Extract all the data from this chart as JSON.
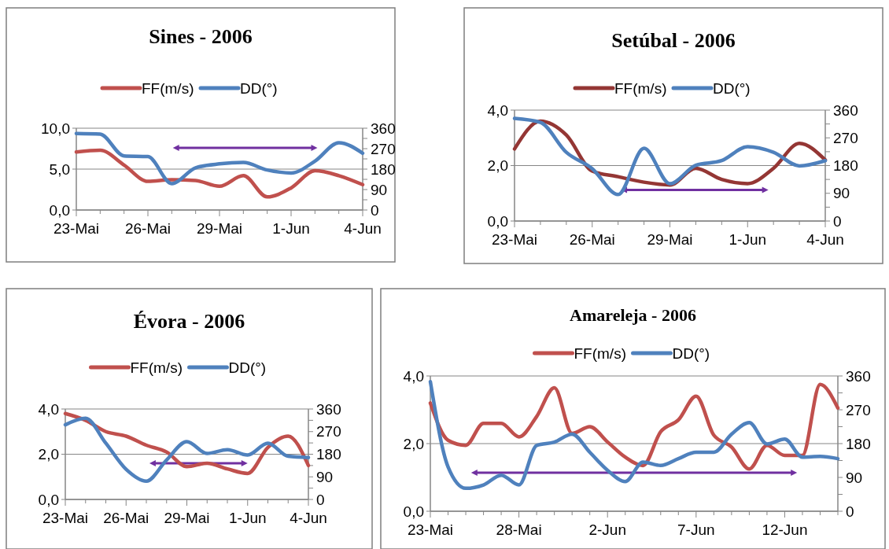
{
  "chart_data": [
    {
      "type": "line",
      "title": "Sines - 2006",
      "legend": "top",
      "grid": "y",
      "x": [
        "2006-05-23",
        "2006-05-24",
        "2006-05-25",
        "2006-05-26",
        "2006-05-27",
        "2006-05-28",
        "2006-05-29",
        "2006-05-30",
        "2006-05-31",
        "2006-06-01",
        "2006-06-02",
        "2006-06-03",
        "2006-06-04"
      ],
      "series": [
        {
          "name": "FF(m/s)",
          "color": "#c0504d",
          "values": [
            7.1,
            7.3,
            5.5,
            3.5,
            3.7,
            3.6,
            2.9,
            4.2,
            1.6,
            2.7,
            4.8,
            4.2,
            3.1
          ]
        },
        {
          "name": "DD(°)",
          "color": "#4f81bd",
          "axis": "y2",
          "values": [
            337,
            334,
            238,
            235,
            116,
            186,
            203,
            209,
            176,
            163,
            215,
            296,
            250
          ]
        }
      ],
      "xlim": [
        "2006-05-23",
        "2006-06-04"
      ],
      "xticks": [
        {
          "value": "2006-05-23",
          "label": "23-Mai"
        },
        {
          "value": "2006-05-24",
          "label": null
        },
        {
          "value": "2006-05-25",
          "label": null
        },
        {
          "value": "2006-05-26",
          "label": "26-Mai"
        },
        {
          "value": "2006-05-27",
          "label": null
        },
        {
          "value": "2006-05-28",
          "label": null
        },
        {
          "value": "2006-05-29",
          "label": "29-Mai"
        },
        {
          "value": "2006-05-30",
          "label": null
        },
        {
          "value": "2006-05-31",
          "label": null
        },
        {
          "value": "2006-06-01",
          "label": "1-Jun"
        },
        {
          "value": "2006-06-02",
          "label": null
        },
        {
          "value": "2006-06-03",
          "label": null
        },
        {
          "value": "2006-06-04",
          "label": "4-Jun"
        }
      ],
      "ylim": [
        0,
        10
      ],
      "yticks": [
        {
          "value": 0,
          "label": "0,0"
        },
        {
          "value": 5,
          "label": "5,0"
        },
        {
          "value": 10,
          "label": "10,0"
        }
      ],
      "y2lim": [
        0,
        360
      ],
      "y2ticks": [
        0,
        {
          "value": 45,
          "label": null
        },
        90,
        {
          "value": 135,
          "label": null
        },
        180,
        {
          "value": 225,
          "label": null
        },
        270,
        {
          "value": 315,
          "label": null
        },
        360
      ]
    },
    {
      "type": "line",
      "title": "Setúbal - 2006",
      "legend": "top",
      "grid": "y",
      "x": [
        "2006-05-23",
        "2006-05-24",
        "2006-05-25",
        "2006-05-26",
        "2006-05-27",
        "2006-05-28",
        "2006-05-29",
        "2006-05-30",
        "2006-05-31",
        "2006-06-01",
        "2006-06-02",
        "2006-06-03",
        "2006-06-04"
      ],
      "series": [
        {
          "name": "FF(m/s)",
          "color": "#943634",
          "values": [
            2.6,
            3.6,
            3.1,
            1.8,
            1.6,
            1.4,
            1.3,
            1.9,
            1.5,
            1.35,
            1.9,
            2.8,
            2.2
          ]
        },
        {
          "name": "DD(°)",
          "color": "#4f81bd",
          "axis": "y2",
          "values": [
            333,
            320,
            223,
            170,
            86,
            236,
            121,
            181,
            196,
            241,
            223,
            179,
            196
          ]
        }
      ],
      "xlim": [
        "2006-05-23",
        "2006-06-04"
      ],
      "xticks": [
        {
          "value": "2006-05-23",
          "label": "23-Mai"
        },
        {
          "value": "2006-05-24",
          "label": null
        },
        {
          "value": "2006-05-25",
          "label": null
        },
        {
          "value": "2006-05-26",
          "label": "26-Mai"
        },
        {
          "value": "2006-05-27",
          "label": null
        },
        {
          "value": "2006-05-28",
          "label": null
        },
        {
          "value": "2006-05-29",
          "label": "29-Mai"
        },
        {
          "value": "2006-05-30",
          "label": null
        },
        {
          "value": "2006-05-31",
          "label": null
        },
        {
          "value": "2006-06-01",
          "label": "1-Jun"
        },
        {
          "value": "2006-06-02",
          "label": null
        },
        {
          "value": "2006-06-03",
          "label": null
        },
        {
          "value": "2006-06-04",
          "label": "4-Jun"
        }
      ],
      "ylim": [
        0,
        4
      ],
      "yticks": [
        {
          "value": 0,
          "label": "0,0"
        },
        {
          "value": 2,
          "label": "2,0"
        },
        {
          "value": 4,
          "label": "4,0"
        }
      ],
      "y2lim": [
        0,
        360
      ],
      "y2ticks": [
        0,
        {
          "value": 45,
          "label": null
        },
        90,
        {
          "value": 135,
          "label": null
        },
        180,
        {
          "value": 225,
          "label": null
        },
        270,
        {
          "value": 315,
          "label": null
        },
        360
      ]
    },
    {
      "type": "line",
      "title": "Évora - 2006",
      "legend": "top",
      "grid": "y",
      "x": [
        "2006-05-23",
        "2006-05-24",
        "2006-05-25",
        "2006-05-26",
        "2006-05-27",
        "2006-05-28",
        "2006-05-29",
        "2006-05-30",
        "2006-05-31",
        "2006-06-01",
        "2006-06-02",
        "2006-06-03",
        "2006-06-04"
      ],
      "series": [
        {
          "name": "FF(m/s)",
          "color": "#c0504d",
          "values": [
            3.8,
            3.5,
            3.0,
            2.8,
            2.4,
            2.1,
            1.45,
            1.6,
            1.35,
            1.15,
            2.3,
            2.8,
            1.5
          ]
        },
        {
          "name": "DD(°)",
          "color": "#4f81bd",
          "axis": "y2",
          "values": [
            297,
            323,
            224,
            120,
            73,
            157,
            230,
            183,
            198,
            177,
            224,
            172,
            167
          ]
        }
      ],
      "xlim": [
        "2006-05-23",
        "2006-06-04"
      ],
      "xticks": [
        {
          "value": "2006-05-23",
          "label": "23-Mai"
        },
        {
          "value": "2006-05-24",
          "label": null
        },
        {
          "value": "2006-05-25",
          "label": null
        },
        {
          "value": "2006-05-26",
          "label": "26-Mai"
        },
        {
          "value": "2006-05-27",
          "label": null
        },
        {
          "value": "2006-05-28",
          "label": null
        },
        {
          "value": "2006-05-29",
          "label": "29-Mai"
        },
        {
          "value": "2006-05-30",
          "label": null
        },
        {
          "value": "2006-05-31",
          "label": null
        },
        {
          "value": "2006-06-01",
          "label": "1-Jun"
        },
        {
          "value": "2006-06-02",
          "label": null
        },
        {
          "value": "2006-06-03",
          "label": null
        },
        {
          "value": "2006-06-04",
          "label": "4-Jun"
        }
      ],
      "ylim": [
        0,
        4
      ],
      "yticks": [
        {
          "value": 0,
          "label": "0,0"
        },
        {
          "value": 2,
          "label": "2,0"
        },
        {
          "value": 4,
          "label": "4,0"
        }
      ],
      "y2lim": [
        0,
        360
      ],
      "y2ticks": [
        0,
        {
          "value": 45,
          "label": null
        },
        90,
        {
          "value": 135,
          "label": null
        },
        180,
        {
          "value": 225,
          "label": null
        },
        270,
        {
          "value": 315,
          "label": null
        },
        360
      ]
    },
    {
      "type": "line",
      "title": "Amareleja - 2006",
      "legend": "top",
      "grid": "y",
      "x": [
        "2006-05-23",
        "2006-05-24",
        "2006-05-25",
        "2006-05-26",
        "2006-05-27",
        "2006-05-28",
        "2006-05-29",
        "2006-05-30",
        "2006-05-31",
        "2006-06-01",
        "2006-06-02",
        "2006-06-03",
        "2006-06-04",
        "2006-06-05",
        "2006-06-06",
        "2006-06-07",
        "2006-06-08",
        "2006-06-09",
        "2006-06-10",
        "2006-06-11",
        "2006-06-12",
        "2006-06-13",
        "2006-06-14",
        "2006-06-15"
      ],
      "series": [
        {
          "name": "FF(m/s)",
          "color": "#c0504d",
          "values": [
            3.2,
            2.1,
            1.95,
            2.6,
            2.6,
            2.2,
            2.8,
            3.65,
            2.3,
            2.5,
            2.05,
            1.6,
            1.35,
            2.35,
            2.7,
            3.4,
            2.25,
            1.9,
            1.25,
            1.95,
            1.65,
            1.65,
            3.75,
            3.05
          ]
        },
        {
          "name": "DD(°)",
          "color": "#4f81bd",
          "axis": "y2",
          "values": [
            345,
            118,
            61,
            70,
            96,
            70,
            175,
            184,
            205,
            157,
            109,
            79,
            131,
            122,
            140,
            157,
            157,
            205,
            236,
            179,
            192,
            144,
            146,
            140
          ]
        }
      ],
      "xlim": [
        "2006-05-23",
        "2006-06-15"
      ],
      "xticks": [
        {
          "value": "2006-05-23",
          "label": "23-Mai"
        },
        {
          "value": "2006-05-24",
          "label": null
        },
        {
          "value": "2006-05-25",
          "label": null
        },
        {
          "value": "2006-05-26",
          "label": null
        },
        {
          "value": "2006-05-27",
          "label": null
        },
        {
          "value": "2006-05-28",
          "label": "28-Mai"
        },
        {
          "value": "2006-05-29",
          "label": null
        },
        {
          "value": "2006-05-30",
          "label": null
        },
        {
          "value": "2006-05-31",
          "label": null
        },
        {
          "value": "2006-06-01",
          "label": null
        },
        {
          "value": "2006-06-02",
          "label": "2-Jun"
        },
        {
          "value": "2006-06-03",
          "label": null
        },
        {
          "value": "2006-06-04",
          "label": null
        },
        {
          "value": "2006-06-05",
          "label": null
        },
        {
          "value": "2006-06-06",
          "label": null
        },
        {
          "value": "2006-06-07",
          "label": "7-Jun"
        },
        {
          "value": "2006-06-08",
          "label": null
        },
        {
          "value": "2006-06-09",
          "label": null
        },
        {
          "value": "2006-06-10",
          "label": null
        },
        {
          "value": "2006-06-11",
          "label": null
        },
        {
          "value": "2006-06-12",
          "label": "12-Jun"
        },
        {
          "value": "2006-06-13",
          "label": null
        },
        {
          "value": "2006-06-14",
          "label": null
        },
        {
          "value": "2006-06-15",
          "label": null
        }
      ],
      "ylim": [
        0,
        4
      ],
      "yticks": [
        {
          "value": 0,
          "label": "0,0"
        },
        {
          "value": 2,
          "label": "2,0"
        },
        {
          "value": 4,
          "label": "4,0"
        }
      ],
      "y2lim": [
        0,
        360
      ],
      "y2ticks": [
        0,
        {
          "value": 45,
          "label": null
        },
        90,
        {
          "value": 135,
          "label": null
        },
        180,
        {
          "value": 225,
          "label": null
        },
        270,
        {
          "value": 315,
          "label": null
        },
        360
      ]
    }
  ]
}
